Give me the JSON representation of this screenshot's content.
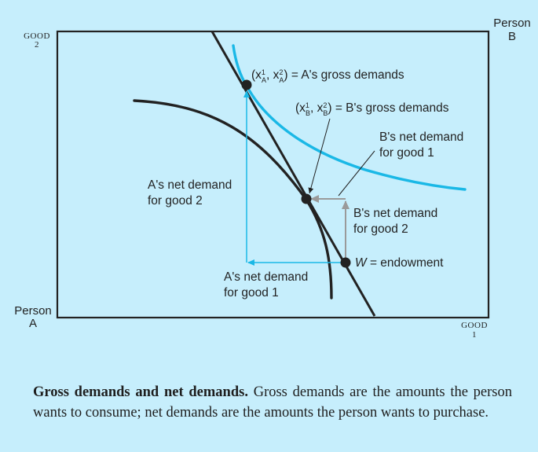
{
  "axes": {
    "good2_label": "GOOD",
    "good2_sub": "2",
    "good1_label": "GOOD",
    "good1_sub": "1",
    "person_a_label": "Person",
    "person_a_sub": "A",
    "person_b_label": "Person",
    "person_b_sub": "B"
  },
  "labels": {
    "a_gross_lead": "(x",
    "a_gross_sep": ", x",
    "a_gross_tail": ") = A's gross demands",
    "a_gross_sub": "A",
    "b_gross_lead": "(x",
    "b_gross_sep": ", x",
    "b_gross_tail": ") = B's gross demands",
    "b_gross_sub": "B",
    "sup1": "1",
    "sup2": "2",
    "b_net_good1_line1": "B's net demand",
    "b_net_good1_line2": "for good 1",
    "a_net_good2_line1": "A's net demand",
    "a_net_good2_line2": "for good 2",
    "b_net_good2_line1": "B's net demand",
    "b_net_good2_line2": "for good 2",
    "endowment_symbol": "W",
    "endowment_text": " = endowment",
    "a_net_good1_line1": "A's net demand",
    "a_net_good1_line2": "for good 1"
  },
  "caption": {
    "bold": "Gross demands and net demands.",
    "text": " Gross demands are the amounts the person wants to consume; net demands are the amounts the person wants to purchase."
  },
  "colors": {
    "background": "#c6eefc",
    "ink": "#222222",
    "cyan": "#1ab8e6",
    "gray_arrow": "#9a9a9a"
  }
}
